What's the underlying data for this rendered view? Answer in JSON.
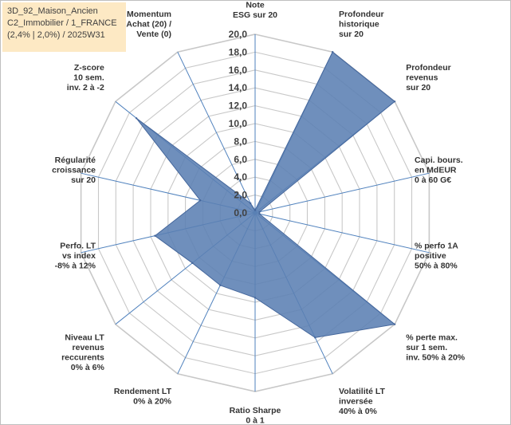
{
  "info_box": {
    "line1": "3D_92_Maison_Ancien",
    "line2": "C2_Immobilier / 1_FRANCE",
    "line3": "(2,4% | 2,0%) / 2025W31"
  },
  "chart_data": {
    "type": "radar",
    "rmin": 0,
    "rmax": 20,
    "tick_labels": [
      "0,0",
      "2,0",
      "4,0",
      "6,0",
      "8,0",
      "10,0",
      "12,0",
      "14,0",
      "16,0",
      "18,0",
      "20,0"
    ],
    "grid": true,
    "legend": "none",
    "axes": [
      [
        "Note",
        "ESG sur 20"
      ],
      [
        "Profondeur",
        "historique",
        "sur 20"
      ],
      [
        "Profondeur",
        "revenus",
        "sur 20"
      ],
      [
        "Capi. bours.",
        "en MdEUR",
        "0 à 60 G€"
      ],
      [
        "% perfo 1A",
        "positive",
        "50% à 80%"
      ],
      [
        "% perte max.",
        "sur 1 sem.",
        "inv. 50% à 20%"
      ],
      [
        "Volatilité LT",
        "inversée",
        "40% à 0%"
      ],
      [
        "Ratio Sharpe",
        "0 à 1"
      ],
      [
        "Rendement LT",
        "0% à 20%"
      ],
      [
        "Niveau LT",
        "revenus",
        "reccurents",
        "0% à 6%"
      ],
      [
        "Perfo. LT",
        "vs index",
        "-8% à 12%"
      ],
      [
        "Régularité",
        "croissance",
        "sur 20"
      ],
      [
        "Z-score",
        "10 sem.",
        "inv. 2 à -2"
      ],
      [
        "Momentum",
        "Achat (20) /",
        "Vente (0)"
      ]
    ],
    "series": [
      {
        "values": [
          0.3,
          20.0,
          20.0,
          0.5,
          0.5,
          20.0,
          15.5,
          9.5,
          9.0,
          9.0,
          11.5,
          6.3,
          17.0,
          1.2
        ],
        "color": "#5b7fb3"
      }
    ]
  },
  "colors": {
    "fill": "#5b7fb3",
    "stroke": "#45679c",
    "grid": "#c8c8c8",
    "axis": "#4f81bd",
    "info_bg": "#fde9c4"
  }
}
